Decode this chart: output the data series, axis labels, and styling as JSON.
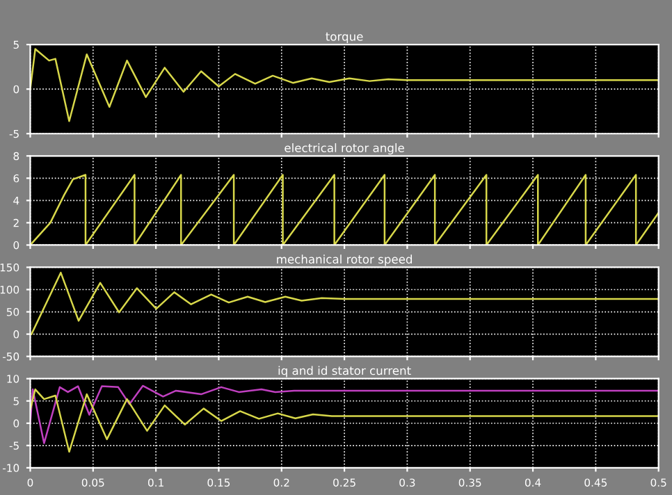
{
  "chart_data": [
    {
      "type": "line",
      "title": "torque",
      "xlim": [
        0,
        0.5
      ],
      "ylim": [
        -5,
        5
      ],
      "yticks": [
        -5,
        0,
        5
      ],
      "xticks": [
        0,
        0.05,
        0.1,
        0.15,
        0.2,
        0.25,
        0.3,
        0.35,
        0.4,
        0.45,
        0.5
      ],
      "tick_labels": "y",
      "grid": true,
      "series": [
        {
          "color": "#d8d84a",
          "x": [
            0,
            0.004,
            0.015,
            0.02,
            0.031,
            0.045,
            0.063,
            0.077,
            0.092,
            0.107,
            0.122,
            0.136,
            0.15,
            0.163,
            0.179,
            0.193,
            0.209,
            0.224,
            0.238,
            0.254,
            0.27,
            0.285,
            0.3,
            0.32,
            0.5
          ],
          "values": [
            0,
            4.5,
            3.2,
            3.4,
            -3.6,
            3.9,
            -2.0,
            3.2,
            -0.9,
            2.4,
            -0.3,
            2.0,
            0.3,
            1.7,
            0.6,
            1.5,
            0.7,
            1.2,
            0.8,
            1.2,
            0.9,
            1.1,
            1.0,
            1.0,
            1.0
          ]
        }
      ]
    },
    {
      "type": "line",
      "title": "electrical rotor angle",
      "xlim": [
        0,
        0.5
      ],
      "ylim": [
        0,
        8
      ],
      "yticks": [
        0,
        2,
        4,
        6,
        8
      ],
      "xticks": [
        0,
        0.05,
        0.1,
        0.15,
        0.2,
        0.25,
        0.3,
        0.35,
        0.4,
        0.45,
        0.5
      ],
      "tick_labels": "y",
      "grid": true,
      "series": [
        {
          "color": "#d8d84a",
          "x": [
            0,
            0.016,
            0.027,
            0.034,
            0.044,
            0.044,
            0.083,
            0.083,
            0.12,
            0.12,
            0.162,
            0.162,
            0.201,
            0.201,
            0.242,
            0.242,
            0.282,
            0.282,
            0.322,
            0.322,
            0.363,
            0.363,
            0.404,
            0.404,
            0.442,
            0.442,
            0.482,
            0.482,
            0.5
          ],
          "values": [
            0,
            2,
            4.5,
            5.9,
            6.3,
            0,
            6.3,
            0,
            6.3,
            0,
            6.3,
            0,
            6.3,
            0,
            6.3,
            0,
            6.3,
            0,
            6.3,
            0,
            6.3,
            0,
            6.3,
            0,
            6.3,
            0,
            6.3,
            0,
            2.9
          ]
        }
      ]
    },
    {
      "type": "line",
      "title": "mechanical rotor speed",
      "xlim": [
        0,
        0.5
      ],
      "ylim": [
        -50,
        150
      ],
      "yticks": [
        -50,
        0,
        50,
        100,
        150
      ],
      "xticks": [
        0,
        0.05,
        0.1,
        0.15,
        0.2,
        0.25,
        0.3,
        0.35,
        0.4,
        0.45,
        0.5
      ],
      "tick_labels": "y",
      "grid": true,
      "series": [
        {
          "color": "#d8d84a",
          "x": [
            0.001,
            0.0243,
            0.0385,
            0.0557,
            0.0707,
            0.0849,
            0.1003,
            0.1146,
            0.128,
            0.144,
            0.158,
            0.173,
            0.187,
            0.203,
            0.216,
            0.232,
            0.25,
            0.5
          ],
          "values": [
            0,
            138,
            30,
            115,
            49,
            103,
            57,
            94,
            67,
            89,
            71,
            84,
            72,
            84,
            75,
            81,
            79,
            79
          ]
        }
      ]
    },
    {
      "type": "line",
      "title": "iq and id stator current",
      "xlim": [
        0,
        0.5
      ],
      "ylim": [
        -10,
        10
      ],
      "yticks": [
        -10,
        -5,
        0,
        5,
        10
      ],
      "xticks": [
        0,
        0.05,
        0.1,
        0.15,
        0.2,
        0.25,
        0.3,
        0.35,
        0.4,
        0.45,
        0.5
      ],
      "grid": true,
      "series": [
        {
          "color": "#c040c0",
          "x": [
            0,
            0.002,
            0.011,
            0.0235,
            0.03,
            0.038,
            0.047,
            0.057,
            0.07,
            0.079,
            0.0896,
            0.1057,
            0.116,
            0.136,
            0.152,
            0.166,
            0.184,
            0.195,
            0.21,
            0.5
          ],
          "values": [
            0,
            7.6,
            -4.5,
            8.1,
            7,
            8.3,
            1.9,
            8.3,
            8.1,
            4.3,
            8.4,
            6,
            7.3,
            6.5,
            8.1,
            7,
            7.6,
            7,
            7.3,
            7.3
          ]
        },
        {
          "color": "#d8d84a",
          "x": [
            0,
            0.004,
            0.011,
            0.02,
            0.031,
            0.045,
            0.061,
            0.077,
            0.093,
            0.107,
            0.123,
            0.138,
            0.152,
            0.167,
            0.182,
            0.197,
            0.211,
            0.225,
            0.24,
            0.5
          ],
          "values": [
            3,
            7.6,
            5.4,
            6.2,
            -6.4,
            6.5,
            -3.6,
            5.4,
            -1.7,
            4,
            -0.3,
            3.3,
            0.5,
            2.7,
            1,
            2.2,
            1.1,
            2,
            1.6,
            1.6
          ]
        }
      ]
    }
  ]
}
